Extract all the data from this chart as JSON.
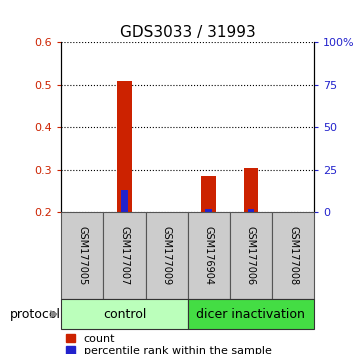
{
  "title": "GDS3033 / 31993",
  "samples": [
    "GSM177005",
    "GSM177007",
    "GSM177009",
    "GSM176904",
    "GSM177006",
    "GSM177008"
  ],
  "count_values": [
    0.2,
    0.51,
    0.2,
    0.285,
    0.305,
    0.2
  ],
  "percentile_values": [
    0.2,
    0.253,
    0.2,
    0.208,
    0.208,
    0.2
  ],
  "ylim": [
    0.2,
    0.6
  ],
  "yticks": [
    0.2,
    0.3,
    0.4,
    0.5,
    0.6
  ],
  "ytick_labels_left": [
    "0.2",
    "0.3",
    "0.4",
    "0.5",
    "0.6"
  ],
  "ytick_labels_right": [
    "0",
    "25",
    "50",
    "75",
    "100%"
  ],
  "y2lim": [
    0,
    100
  ],
  "y2ticks": [
    0,
    25,
    50,
    75,
    100
  ],
  "color_count": "#cc2200",
  "color_percentile": "#2222cc",
  "bar_width": 0.35,
  "groups": [
    {
      "label": "control",
      "indices": [
        0,
        1,
        2
      ],
      "color": "#bbffbb"
    },
    {
      "label": "dicer inactivation",
      "indices": [
        3,
        4,
        5
      ],
      "color": "#44dd44"
    }
  ],
  "protocol_label": "protocol",
  "legend_count_label": "count",
  "legend_percentile_label": "percentile rank within the sample",
  "title_fontsize": 11,
  "tick_fontsize": 8,
  "sample_label_fontsize": 7,
  "group_label_fontsize": 9,
  "protocol_fontsize": 9,
  "legend_fontsize": 8
}
